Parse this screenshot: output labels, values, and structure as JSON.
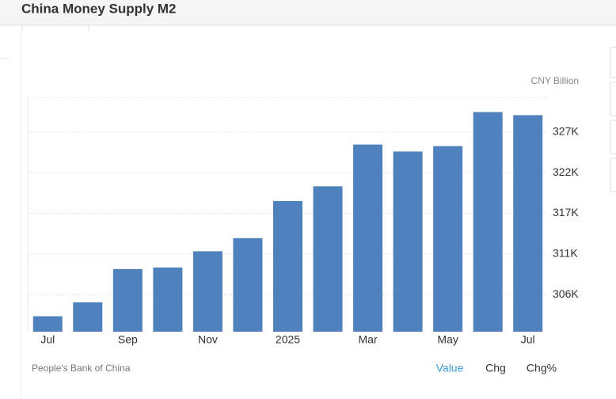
{
  "header": {
    "title": "China Money Supply M2"
  },
  "chart_data": {
    "type": "bar",
    "y_label": "CNY Billion",
    "categories": [
      "Jul",
      null,
      "Sep",
      null,
      "Nov",
      null,
      "2025",
      null,
      "Mar",
      null,
      "May",
      null,
      "Jul"
    ],
    "values": [
      303200,
      305000,
      309300,
      309500,
      311600,
      313300,
      318100,
      320000,
      325400,
      324500,
      325200,
      329600,
      329200
    ],
    "color": "#4f81bd",
    "ylim": [
      301200,
      331500
    ],
    "yticks": [
      {
        "value": 306000,
        "label": "306K"
      },
      {
        "value": 311250,
        "label": "311K"
      },
      {
        "value": 316500,
        "label": "317K"
      },
      {
        "value": 321750,
        "label": "322K"
      },
      {
        "value": 327000,
        "label": "327K"
      }
    ],
    "grid": true
  },
  "footer": {
    "source": "People's Bank of China",
    "tabs": [
      "Value",
      "Chg",
      "Chg%"
    ]
  }
}
